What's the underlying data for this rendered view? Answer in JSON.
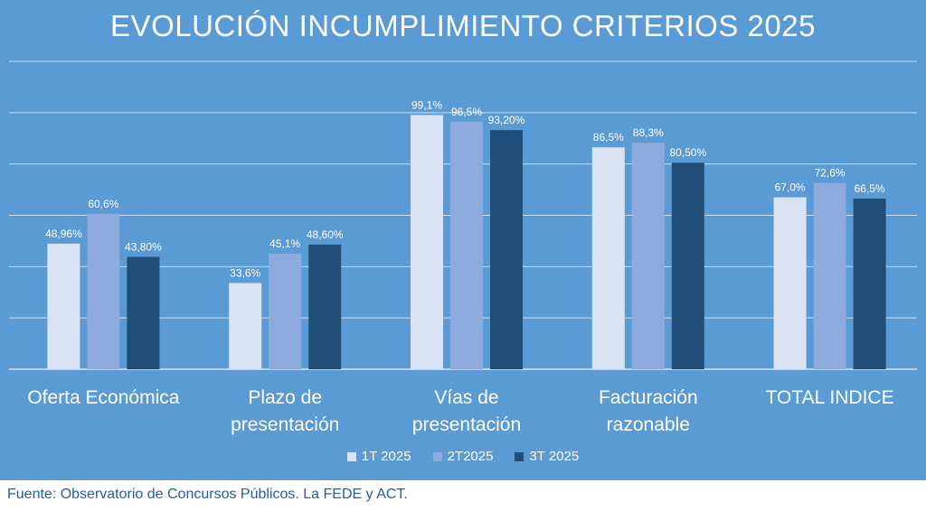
{
  "chart_data": {
    "type": "bar",
    "title": "EVOLUCIÓN INCUMPLIMIENTO CRITERIOS 2025",
    "categories": [
      "Oferta Económica",
      "Plazo de\npresentación",
      "Vías de\npresentación",
      "Facturación\nrazonable",
      "TOTAL INDICE"
    ],
    "series": [
      {
        "name": "1T 2025",
        "color": "#dae3f3",
        "values": [
          48.96,
          33.6,
          99.1,
          86.5,
          67.0
        ],
        "labels": [
          "48,96%",
          "33,6%",
          "99,1%",
          "86,5%",
          "67,0%"
        ]
      },
      {
        "name": "2T2025",
        "color": "#8faadc",
        "values": [
          60.6,
          45.1,
          96.5,
          88.3,
          72.6
        ],
        "labels": [
          "60,6%",
          "45,1%",
          "96,5%",
          "88,3%",
          "72,6%"
        ]
      },
      {
        "name": "3T 2025",
        "color": "#1f4e79",
        "values": [
          43.8,
          48.6,
          93.2,
          80.5,
          66.5
        ],
        "labels": [
          "43,80%",
          "48,60%",
          "93,20%",
          "80,50%",
          "66,5%"
        ]
      }
    ],
    "ylim": [
      0,
      120
    ],
    "grid": true,
    "legend": "bottom"
  },
  "source": "Fuente: Observatorio de Concursos Públicos. La FEDE y ACT."
}
